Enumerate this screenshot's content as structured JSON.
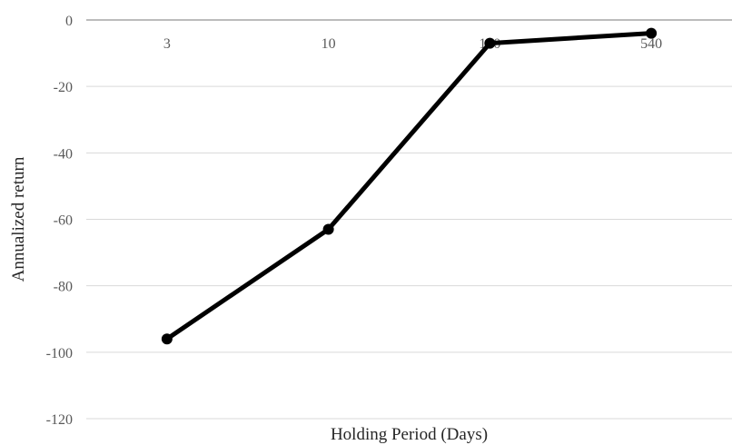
{
  "chart_data": {
    "type": "line",
    "categories": [
      "3",
      "10",
      "180",
      "540"
    ],
    "series": [
      {
        "values": [
          -96,
          -63,
          -7,
          -4
        ]
      }
    ],
    "xlabel": "Holding Period (Days)",
    "ylabel": "Annualized return",
    "ylim": [
      -120,
      0
    ],
    "yticks": [
      0,
      -20,
      -40,
      -60,
      -80,
      -100,
      -120
    ],
    "x_axis_position": "top (at y = 0)",
    "grid": true,
    "legend": "none",
    "colors": {
      "line": "#000000",
      "grid": "#d9d9d9",
      "axis": "#a6a6a6"
    }
  }
}
